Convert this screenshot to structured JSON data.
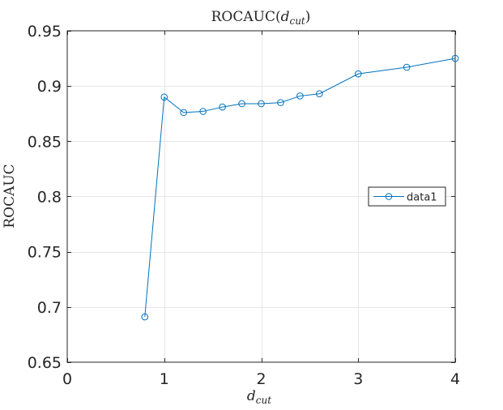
{
  "chart_data": {
    "type": "line",
    "title": "ROCAUC(d_cut)",
    "title_parts": {
      "prefix": "ROCAUC(",
      "var": "d",
      "sub": "cut",
      "suffix": ")"
    },
    "xlabel": "d_cut",
    "xlabel_parts": {
      "var": "d",
      "sub": "cut"
    },
    "ylabel": "ROCAUC",
    "xlim": [
      0,
      4
    ],
    "ylim": [
      0.65,
      0.95
    ],
    "xticks": [
      0,
      1,
      2,
      3,
      4
    ],
    "xtick_labels": [
      "0",
      "1",
      "2",
      "3",
      "4"
    ],
    "yticks": [
      0.65,
      0.7,
      0.75,
      0.8,
      0.85,
      0.9,
      0.95
    ],
    "ytick_labels": [
      "0.65",
      "0.7",
      "0.75",
      "0.8",
      "0.85",
      "0.9",
      "0.95"
    ],
    "grid": true,
    "legend_position": "right",
    "series": [
      {
        "name": "data1",
        "color": "#0072bd",
        "marker": "circle",
        "x": [
          0.8,
          1.0,
          1.2,
          1.4,
          1.6,
          1.8,
          2.0,
          2.2,
          2.4,
          2.6,
          3.0,
          3.5,
          4.0
        ],
        "y": [
          0.691,
          0.89,
          0.876,
          0.877,
          0.881,
          0.884,
          0.884,
          0.885,
          0.891,
          0.893,
          0.911,
          0.917,
          0.925
        ]
      }
    ]
  }
}
